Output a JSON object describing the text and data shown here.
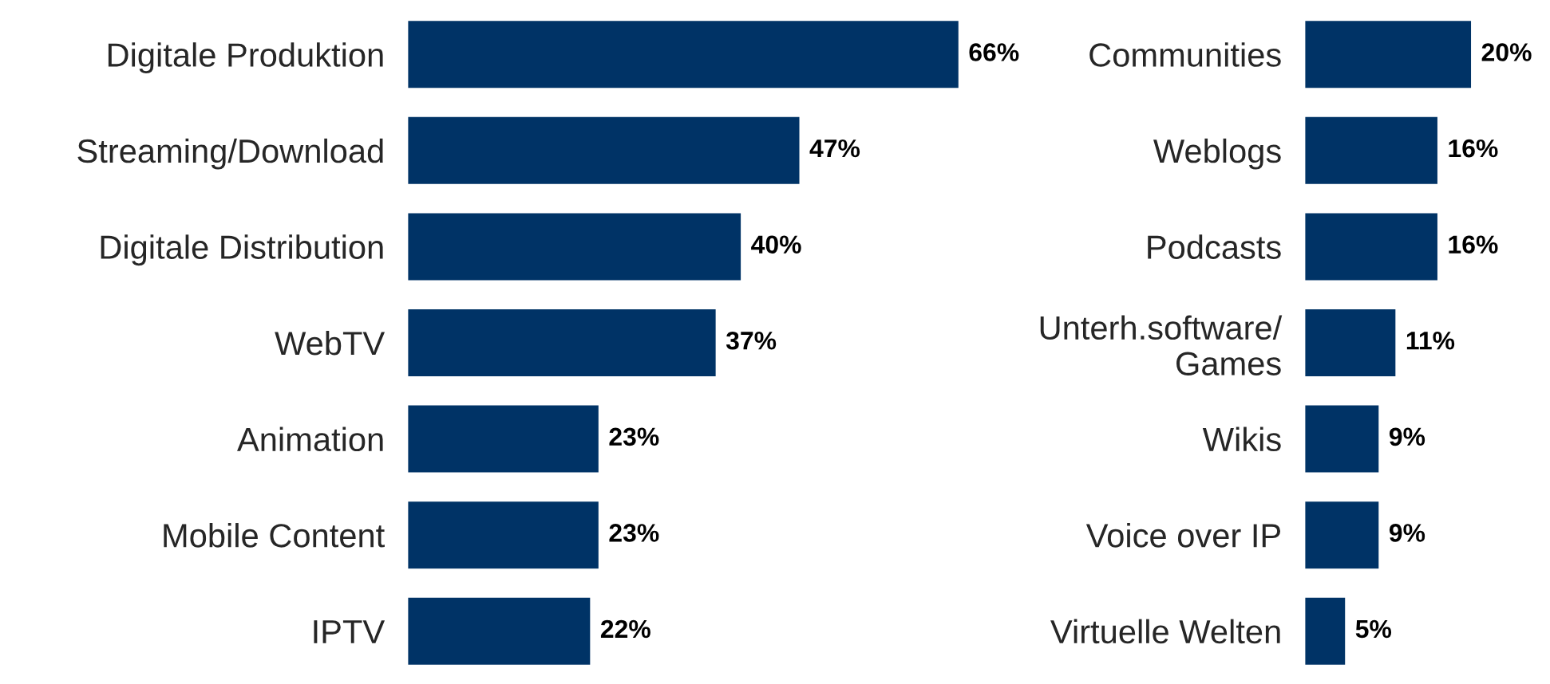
{
  "chart_data": [
    {
      "type": "bar",
      "orientation": "horizontal",
      "tick_labels": "y",
      "grid": false,
      "legend": false,
      "categories": [
        "Digitale Produktion",
        "Streaming/Download",
        "Digitale Distribution",
        "WebTV",
        "Animation",
        "Mobile Content",
        "IPTV"
      ],
      "values": [
        66,
        47,
        40,
        37,
        23,
        23,
        22
      ],
      "value_labels": [
        "66%",
        "47%",
        "40%",
        "37%",
        "23%",
        "23%",
        "22%"
      ],
      "color": "#003366"
    },
    {
      "type": "bar",
      "orientation": "horizontal",
      "tick_labels": "y",
      "grid": false,
      "legend": false,
      "categories": [
        "Communities",
        "Weblogs",
        "Podcasts",
        "Unterh.software/\nGames",
        "Wikis",
        "Voice over IP",
        "Virtuelle Welten"
      ],
      "values": [
        20,
        16,
        16,
        11,
        9,
        9,
        5
      ],
      "value_labels": [
        "20%",
        "16%",
        "16%",
        "11%",
        "9%",
        "9%",
        "5%"
      ],
      "color": "#003366"
    }
  ]
}
